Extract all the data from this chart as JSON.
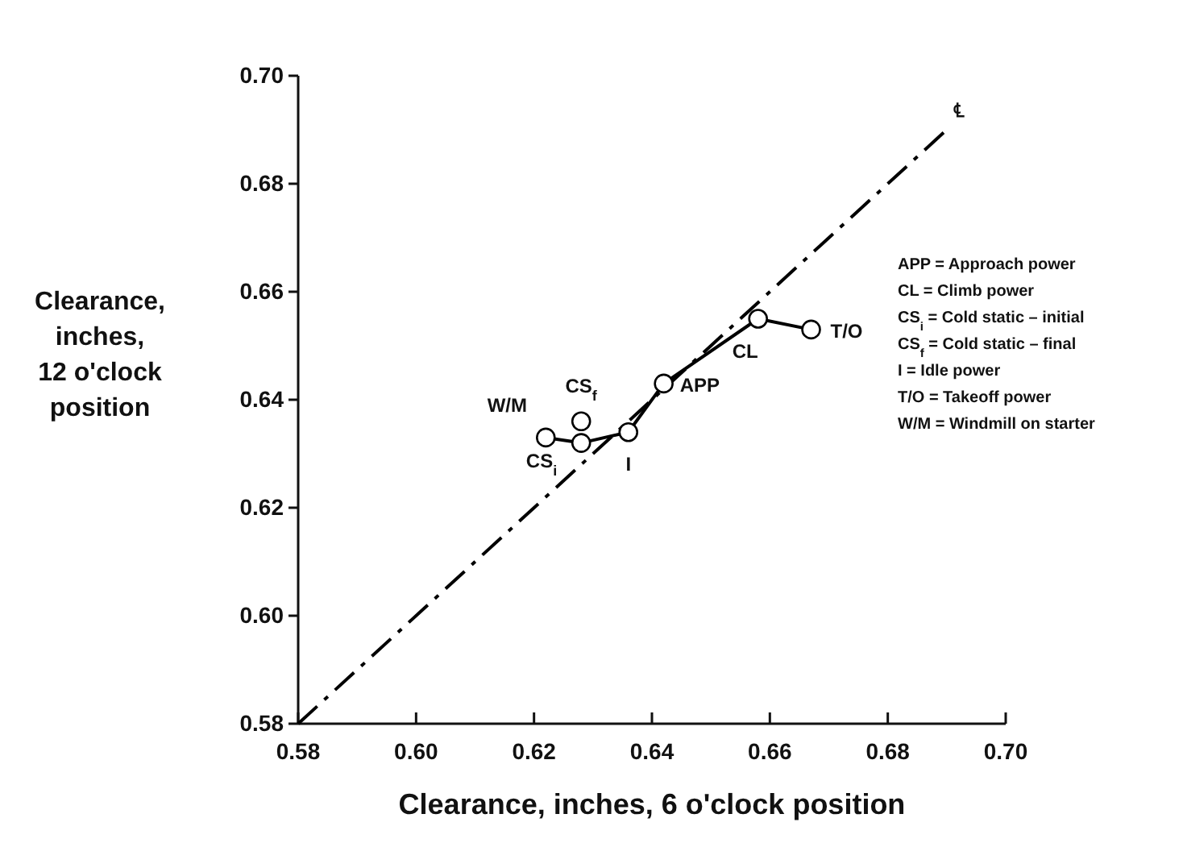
{
  "chart_data": {
    "type": "line",
    "xlabel": "Clearance, inches, 6 o'clock position",
    "ylabel": "Clearance, inches, 12 o'clock position",
    "xlim": [
      0.58,
      0.7
    ],
    "ylim": [
      0.58,
      0.7
    ],
    "xticks": [
      0.58,
      {
        "value": 0.6,
        "label": "0.60"
      },
      0.62,
      0.64,
      0.66,
      0.68,
      {
        "value": 0.7,
        "label": "0.70"
      }
    ],
    "yticks": [
      0.58,
      {
        "value": 0.6,
        "label": "0.60"
      },
      0.62,
      0.64,
      0.66,
      0.68,
      {
        "value": 0.7,
        "label": "0.70"
      }
    ],
    "grid": false,
    "marker": "circle",
    "series": [
      {
        "color": "#000000",
        "line_style": "dashed",
        "marker": "none",
        "x": [
          0.58,
          0.69
        ],
        "values": [
          0.58,
          0.69
        ]
      },
      {
        "color": "#000000",
        "line_style": "solid",
        "x": [
          0.622,
          0.628,
          0.636,
          0.642,
          0.658,
          0.667
        ],
        "values": [
          0.633,
          0.632,
          0.634,
          0.643,
          0.655,
          0.653
        ]
      },
      {
        "type": "scatter",
        "color": "#000000",
        "x": [
          0.628
        ],
        "values": [
          0.636
        ]
      }
    ],
    "annotations": [
      {
        "text": "W/M",
        "x": 0.622,
        "y": 0.633
      },
      {
        "text": "CS$_{i}$",
        "x": 0.628,
        "y": 0.632
      },
      {
        "text": "CS$_{f}$",
        "x": 0.628,
        "y": 0.636
      },
      {
        "text": "I",
        "x": 0.636,
        "y": 0.634
      },
      {
        "text": "APP",
        "x": 0.642,
        "y": 0.643
      },
      {
        "text": "CL",
        "x": 0.658,
        "y": 0.655
      },
      {
        "text": "T/O",
        "x": 0.667,
        "y": 0.653
      },
      {
        "text": "℄",
        "x": 0.69,
        "y": 0.69
      },
      "APP  =  Approach power",
      "CL  =  Climb power",
      "CS$_{i}$  =  Cold static – initial",
      "CS$_{f}$  =  Cold static – final",
      "I  =  Idle power",
      "T/O  =  Takeoff power",
      "W/M  =  Windmill on starter"
    ]
  }
}
